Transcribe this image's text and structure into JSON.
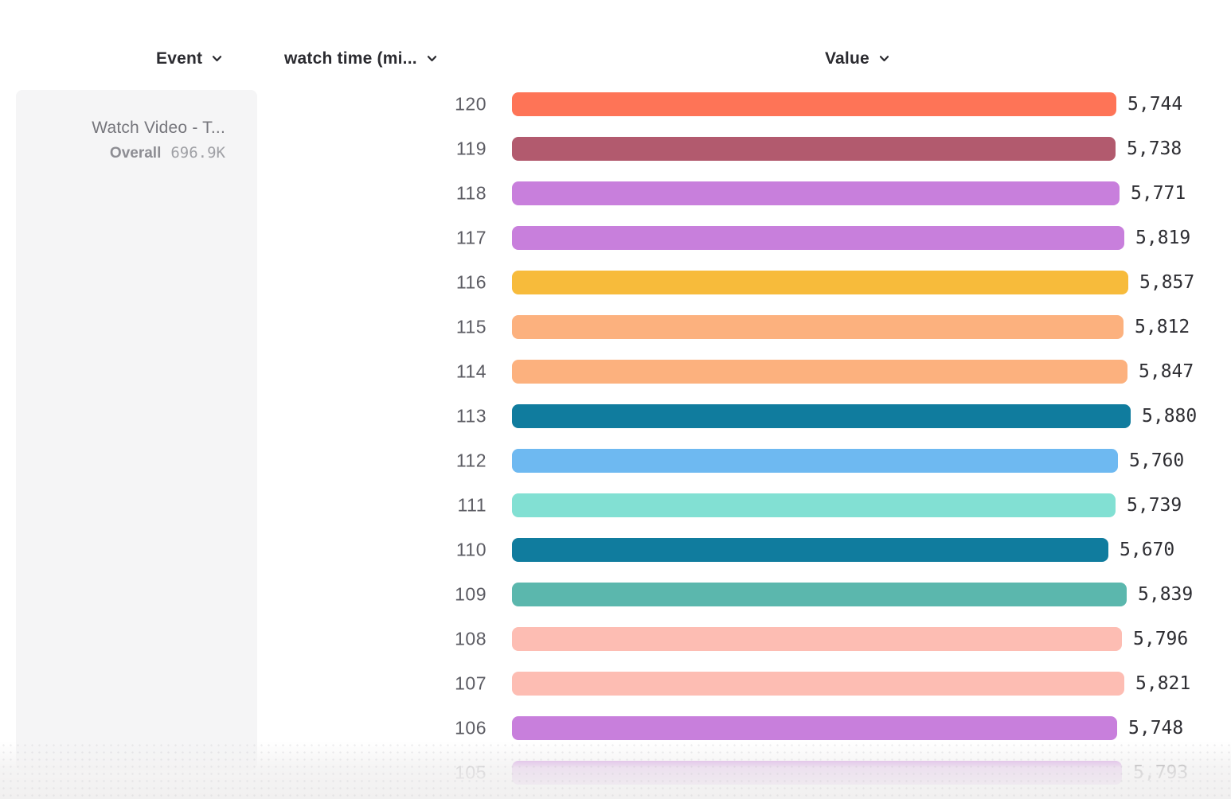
{
  "header": {
    "event_column_label": "Event",
    "watch_time_column_label": "watch time (mi...",
    "value_column_label": "Value"
  },
  "event_card": {
    "title": "Watch Video - T...",
    "overall_label": "Overall",
    "overall_value": "696.9K"
  },
  "icons": {
    "dropdown_chevron": "chevron-down-icon"
  },
  "colors": {
    "header_text": "#2b2b30",
    "tick_text": "#5c5c63",
    "value_text": "#2e2e33",
    "card_background": "#f5f5f6"
  },
  "chart_data": {
    "type": "bar",
    "orientation": "horizontal",
    "title": "",
    "xlabel": "Value",
    "ylabel": "watch time (mi...",
    "categories": [
      "120",
      "119",
      "118",
      "117",
      "116",
      "115",
      "114",
      "113",
      "112",
      "111",
      "110",
      "109",
      "108",
      "107",
      "106",
      "105"
    ],
    "values": [
      5744,
      5738,
      5771,
      5819,
      5857,
      5812,
      5847,
      5880,
      5760,
      5739,
      5670,
      5839,
      5796,
      5821,
      5748,
      5793
    ],
    "value_labels": [
      "5,744",
      "5,738",
      "5,771",
      "5,819",
      "5,857",
      "5,812",
      "5,847",
      "5,880",
      "5,760",
      "5,739",
      "5,670",
      "5,839",
      "5,796",
      "5,821",
      "5,748",
      "5,793"
    ],
    "colors": [
      "#fe7457",
      "#b25a6e",
      "#c87fdc",
      "#c87fdc",
      "#f7bb3b",
      "#fcb17e",
      "#fcb17e",
      "#107c9e",
      "#6eb9f1",
      "#82e0d3",
      "#107c9e",
      "#5bb7ad",
      "#fdbdb3",
      "#fdbdb3",
      "#c87fdc",
      "#c87fdc"
    ],
    "xlim": [
      0,
      5880
    ],
    "grid": false,
    "legend": false
  }
}
